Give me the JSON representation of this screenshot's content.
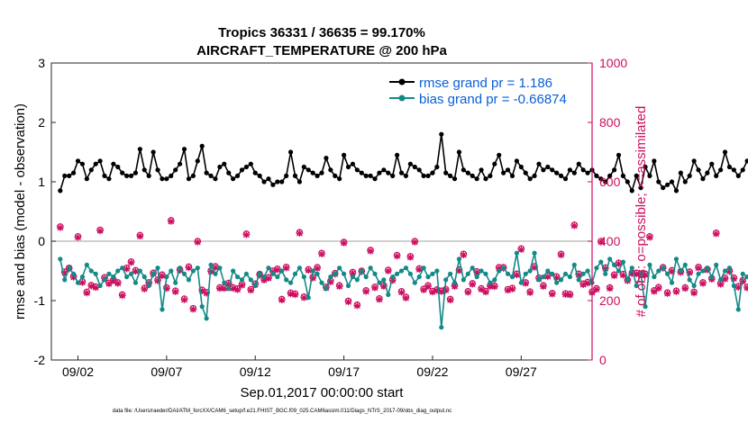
{
  "colors": {
    "rmse": "#000000",
    "bias": "#138a87",
    "obs": "#cc0e5f",
    "zero_line": "#b3b3b3",
    "axis": "#262626",
    "legend_text": "#0a5fd6"
  },
  "chart_data": {
    "type": "line",
    "title": "Tropics 36331 / 36635 = 99.170%",
    "subtitle": "AIRCRAFT_TEMPERATURE @ 200 hPa",
    "xlabel": "Sep.01,2017 00:00:00 start",
    "ylabel_left": "rmse and bias (model - observation)",
    "ylabel_right": "# of obs: o=possible; ×=assimilated",
    "footnote": "data file: /Users/raeder/DAI/ATM_forcXX/CAM6_setup/f.e21.FHIST_BGC.f09_025.CAM6assim.011/Diags_NTrS_2017-09/obs_diag_output.nc",
    "xlim": [
      0.5,
      31.0
    ],
    "ylim_left": [
      -2,
      3
    ],
    "ylim_right": [
      0,
      1000
    ],
    "x_ticks": [
      {
        "value": 2,
        "label": "09/02"
      },
      {
        "value": 7,
        "label": "09/07"
      },
      {
        "value": 12,
        "label": "09/12"
      },
      {
        "value": 17,
        "label": "09/17"
      },
      {
        "value": 22,
        "label": "09/22"
      },
      {
        "value": 27,
        "label": "09/27"
      }
    ],
    "y_ticks_left": [
      "-2",
      "-1",
      "0",
      "1",
      "2",
      "3"
    ],
    "y_ticks_right": [
      "0",
      "200",
      "400",
      "600",
      "800",
      "1000"
    ],
    "legend": [
      {
        "key": "rmse",
        "label": "rmse grand pr = 1.186"
      },
      {
        "key": "bias",
        "label": "bias grand pr = -0.66874"
      }
    ],
    "series": [
      {
        "name": "rmse",
        "x_start": 1.0,
        "x_step": 0.25,
        "values": [
          0.85,
          1.1,
          1.1,
          1.15,
          1.35,
          1.3,
          1.05,
          1.2,
          1.3,
          1.35,
          1.1,
          1.05,
          1.3,
          1.25,
          1.15,
          1.1,
          1.1,
          1.15,
          1.55,
          1.2,
          1.1,
          1.5,
          1.2,
          1.05,
          1.05,
          1.1,
          1.2,
          1.3,
          1.55,
          1.05,
          1.1,
          1.35,
          1.6,
          1.15,
          1.1,
          1.05,
          1.25,
          1.3,
          1.15,
          1.05,
          1.1,
          1.2,
          1.25,
          1.3,
          1.15,
          1.1,
          1.0,
          1.05,
          0.95,
          1.0,
          1.0,
          1.1,
          1.5,
          1.1,
          1.0,
          1.25,
          1.2,
          1.15,
          1.1,
          1.15,
          1.4,
          1.2,
          1.1,
          1.05,
          1.45,
          1.25,
          1.3,
          1.2,
          1.15,
          1.1,
          1.1,
          1.05,
          1.15,
          1.2,
          1.15,
          1.1,
          1.45,
          1.15,
          1.1,
          1.3,
          1.25,
          1.2,
          1.1,
          1.1,
          1.15,
          1.25,
          1.8,
          1.15,
          1.1,
          1.05,
          1.5,
          1.2,
          1.15,
          1.1,
          1.05,
          1.2,
          1.05,
          1.1,
          1.3,
          1.45,
          1.15,
          1.2,
          1.1,
          1.35,
          1.25,
          1.15,
          1.05,
          1.1,
          1.3,
          1.2,
          1.25,
          1.2,
          1.15,
          1.1,
          1.05,
          1.2,
          1.15,
          1.3,
          1.2,
          1.15,
          1.2,
          1.1,
          1.05,
          1.0,
          1.1,
          1.2,
          1.45,
          1.1,
          1.0,
          0.85,
          1.1,
          0.9,
          1.25,
          1.1,
          1.35,
          1.0,
          0.9,
          0.95,
          1.0,
          0.85,
          1.15,
          1.0,
          1.1,
          1.35,
          1.2,
          1.05,
          1.15,
          1.3,
          1.1,
          1.2,
          1.5,
          1.25,
          1.2,
          1.1,
          1.2,
          1.35
        ]
      },
      {
        "name": "bias",
        "x_start": 1.0,
        "x_step": 0.25,
        "values": [
          -0.3,
          -0.65,
          -0.45,
          -0.55,
          -0.7,
          -0.6,
          -0.4,
          -0.5,
          -0.55,
          -0.75,
          -0.65,
          -0.55,
          -0.6,
          -0.5,
          -0.45,
          -0.6,
          -0.55,
          -0.7,
          -0.5,
          -0.6,
          -0.75,
          -0.55,
          -0.45,
          -1.15,
          -0.6,
          -0.5,
          -0.7,
          -0.45,
          -0.55,
          -0.65,
          -0.5,
          -0.45,
          -1.1,
          -1.3,
          -0.4,
          -0.55,
          -0.45,
          -0.7,
          -0.8,
          -0.5,
          -0.6,
          -0.65,
          -0.55,
          -0.65,
          -0.75,
          -0.55,
          -0.6,
          -0.45,
          -0.55,
          -0.6,
          -0.5,
          -0.65,
          -0.7,
          -0.55,
          -0.45,
          -0.6,
          -0.95,
          -0.5,
          -0.55,
          -0.7,
          -0.8,
          -0.6,
          -0.55,
          -0.45,
          -0.55,
          -0.75,
          -0.6,
          -0.65,
          -0.5,
          -0.6,
          -0.45,
          -0.55,
          -0.7,
          -0.65,
          -0.9,
          -0.6,
          -0.55,
          -0.5,
          -0.45,
          -0.55,
          -0.7,
          -0.6,
          -0.45,
          -0.6,
          -0.55,
          -0.5,
          -1.45,
          -0.65,
          -0.55,
          -0.7,
          -0.3,
          -0.65,
          -0.55,
          -0.45,
          -0.6,
          -0.5,
          -0.55,
          -0.7,
          -0.65,
          -0.5,
          -0.45,
          -0.55,
          -0.6,
          -0.2,
          -0.7,
          -0.55,
          -0.5,
          -0.2,
          -0.65,
          -0.6,
          -0.5,
          -0.55,
          -0.7,
          -0.65,
          -0.55,
          -0.6,
          -0.4,
          -0.65,
          -0.55,
          -0.5,
          -0.7,
          -0.45,
          -0.35,
          -0.55,
          -0.3,
          -0.4,
          -0.5,
          -0.35,
          -0.65,
          -0.45,
          -0.75,
          -0.55,
          -1.1,
          -0.4,
          -0.6,
          -0.5,
          -0.45,
          -0.55,
          -0.7,
          -0.3,
          -0.5,
          -0.4,
          -0.65,
          -0.75,
          -0.55,
          -0.5,
          -0.45,
          -0.6,
          -0.4,
          -0.65,
          -0.5,
          -0.45,
          -0.75,
          -1.15,
          -0.55,
          -0.6,
          -0.65,
          -0.75,
          -1.0
        ]
      },
      {
        "name": "obs_possible",
        "axis": "right",
        "marker": "circle",
        "x_start": 1.0,
        "x_step": 0.25,
        "values": [
          449,
          297,
          310,
          282,
          416,
          264,
          229,
          252,
          247,
          438,
          278,
          260,
          270,
          261,
          220,
          310,
          331,
          302,
          420,
          242,
          261,
          293,
          270,
          287,
          244,
          470,
          233,
          305,
          206,
          314,
          174,
          400,
          236,
          228,
          301,
          315,
          244,
          244,
          259,
          244,
          240,
          255,
          425,
          238,
          257,
          289,
          272,
          278,
          300,
          307,
          205,
          313,
          226,
          223,
          430,
          213,
          305,
          279,
          312,
          360,
          246,
          266,
          292,
          251,
          397,
          199,
          296,
          186,
          300,
          234,
          370,
          246,
          207,
          251,
          303,
          271,
          353,
          231,
          212,
          349,
          400,
          308,
          239,
          251,
          232,
          237,
          233,
          238,
          205,
          251,
          304,
          357,
          231,
          258,
          298,
          241,
          232,
          251,
          250,
          312,
          312,
          238,
          242,
          290,
          375,
          261,
          230,
          315,
          277,
          251,
          284,
          225,
          281,
          357,
          224,
          222,
          455,
          290,
          257,
          262,
          230,
          241,
          400,
          311,
          244,
          287,
          327,
          289,
          270,
          294,
          293,
          291,
          290,
          416,
          234,
          245,
          312,
          227,
          302,
          233,
          298,
          244,
          297,
          229,
          313,
          261,
          306,
          275,
          428,
          258,
          276,
          301,
          277,
          248,
          268,
          246,
          209,
          305,
          278,
          289,
          285,
          236,
          382,
          392,
          254,
          313,
          252,
          248,
          396,
          280,
          233,
          199,
          317,
          270,
          200,
          230,
          270,
          330,
          285,
          275,
          375,
          262,
          242,
          207,
          319,
          213,
          304,
          270,
          273,
          283,
          279,
          244,
          282,
          283,
          0
        ]
      },
      {
        "name": "obs_assimilated",
        "axis": "right",
        "marker": "cross",
        "x_start": 1.0,
        "x_step": 0.25,
        "values": [
          446,
          294,
          307,
          279,
          413,
          261,
          226,
          249,
          244,
          435,
          275,
          257,
          267,
          258,
          217,
          307,
          328,
          299,
          417,
          239,
          258,
          290,
          267,
          284,
          241,
          467,
          230,
          302,
          203,
          311,
          171,
          397,
          233,
          225,
          298,
          312,
          241,
          241,
          256,
          241,
          237,
          252,
          422,
          235,
          254,
          286,
          269,
          275,
          297,
          304,
          202,
          310,
          223,
          220,
          427,
          210,
          302,
          276,
          309,
          357,
          243,
          263,
          289,
          248,
          394,
          196,
          293,
          183,
          297,
          231,
          367,
          243,
          204,
          248,
          300,
          268,
          350,
          228,
          209,
          346,
          397,
          305,
          236,
          248,
          229,
          234,
          230,
          235,
          202,
          248,
          301,
          354,
          228,
          255,
          295,
          238,
          229,
          248,
          247,
          309,
          309,
          235,
          239,
          287,
          372,
          258,
          227,
          312,
          274,
          248,
          281,
          222,
          278,
          354,
          221,
          219,
          452,
          287,
          254,
          259,
          227,
          238,
          397,
          308,
          241,
          284,
          324,
          286,
          267,
          291,
          290,
          288,
          287,
          413,
          231,
          242,
          309,
          224,
          299,
          230,
          295,
          241,
          294,
          226,
          310,
          258,
          303,
          272,
          425,
          255,
          273,
          298,
          274,
          245,
          265,
          243,
          206,
          302,
          275,
          286,
          282,
          233,
          379,
          389,
          251,
          310,
          249,
          245,
          393,
          277,
          230,
          196,
          314,
          267,
          197,
          227,
          267,
          327,
          282,
          272,
          372,
          259,
          239,
          204,
          316,
          210,
          301,
          267,
          270,
          280,
          276,
          241,
          279,
          280,
          0
        ]
      }
    ]
  }
}
